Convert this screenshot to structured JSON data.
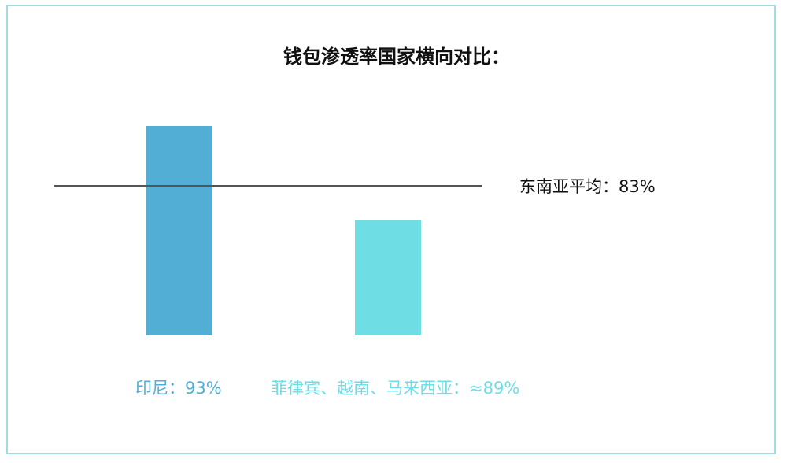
{
  "chart_data": {
    "type": "bar",
    "title": "钱包渗透率国家横向对比：",
    "categories": [
      "印尼",
      "菲律宾、越南、马来西亚"
    ],
    "values": [
      93,
      89
    ],
    "value_labels": [
      "印尼：93%",
      "菲律宾、越南、马来西亚：≈89%"
    ],
    "colors": [
      "#52aed4",
      "#6edde4"
    ],
    "reference_line": {
      "value": 83,
      "label": "东南亚平均：83%",
      "color": "#555555"
    },
    "xlabel": "",
    "ylabel": "",
    "grid": false,
    "legend": "none"
  }
}
